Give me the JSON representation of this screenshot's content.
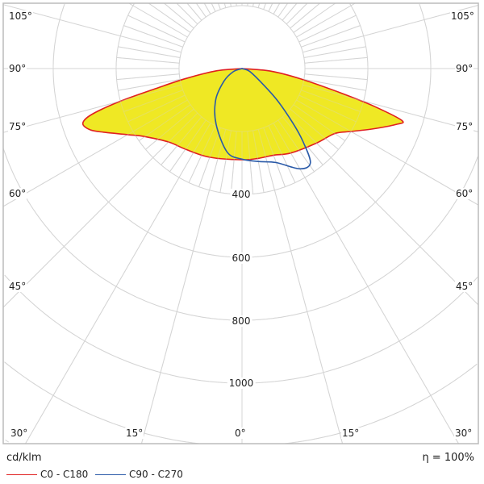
{
  "chart_data": {
    "type": "polar",
    "unit_label": "cd/klm",
    "efficiency": "η = 100%",
    "radial_ticks": [
      "400",
      "600",
      "800",
      "1000"
    ],
    "radial_step": 200,
    "angle_labels": {
      "left": [
        "105°",
        "90°",
        "75°",
        "60°",
        "45°",
        "30°"
      ],
      "right": [
        "105°",
        "90°",
        "75°",
        "60°",
        "45°",
        "30°"
      ],
      "bottom": [
        "30°",
        "15°",
        "0°",
        "15°",
        "30°"
      ]
    },
    "series": [
      {
        "name": "C0 - C180",
        "color": "#e02020",
        "fill": "#efe824",
        "angles": [
          -90,
          -85,
          -80,
          -77,
          -75,
          -73,
          -71,
          -68,
          -65,
          -60,
          -55,
          -45,
          -35,
          -20,
          0,
          10,
          20,
          30,
          45,
          55,
          60,
          65,
          70,
          72,
          74,
          76,
          80,
          85,
          90
        ],
        "values": [
          0,
          80,
          180,
          280,
          400,
          500,
          535,
          520,
          480,
          420,
          377,
          330,
          313,
          300,
          290,
          290,
          293,
          310,
          335,
          360,
          400,
          455,
          520,
          535,
          440,
          330,
          190,
          90,
          0
        ]
      },
      {
        "name": "C90 - C270",
        "color": "#2a5aa8",
        "fill": null,
        "angles": [
          -90,
          -70,
          -55,
          -40,
          -25,
          -10,
          0,
          10,
          20,
          30,
          36,
          40,
          43,
          48,
          55,
          70,
          90
        ],
        "values": [
          0,
          30,
          70,
          130,
          195,
          270,
          288,
          300,
          318,
          368,
          370,
          300,
          238,
          150,
          70,
          25,
          0
        ]
      }
    ]
  }
}
